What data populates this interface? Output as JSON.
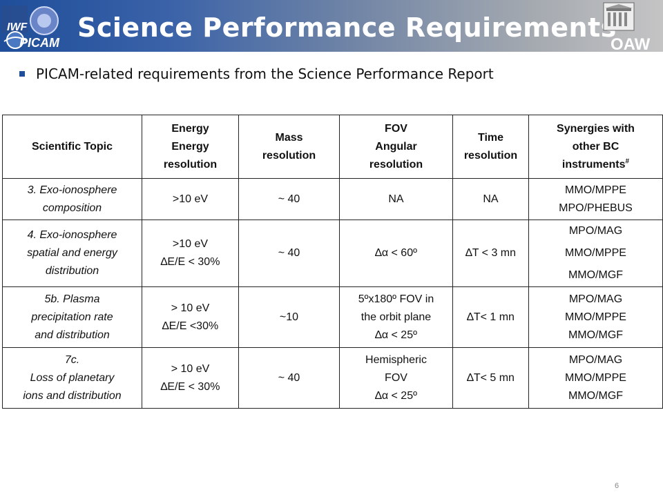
{
  "header": {
    "title": "Science Performance Requirements",
    "logo_left_text": [
      "IWF",
      "PICAM"
    ],
    "logo_right_text": "OAW"
  },
  "bullet": {
    "text": "PICAM-related requirements from the Science Performance Report"
  },
  "table": {
    "headers": [
      {
        "lines": [
          "Scientific Topic"
        ]
      },
      {
        "lines": [
          "Energy",
          "Energy",
          "resolution"
        ]
      },
      {
        "lines": [
          "Mass",
          "resolution"
        ]
      },
      {
        "lines": [
          "FOV",
          "Angular",
          "resolution"
        ]
      },
      {
        "lines": [
          "Time",
          "resolution"
        ]
      },
      {
        "lines": [
          "Synergies with",
          "other BC",
          "instruments"
        ],
        "superscript": "#"
      }
    ],
    "rows": [
      {
        "topic": [
          "3. Exo-ionosphere",
          "composition"
        ],
        "energy": [
          ">10 eV"
        ],
        "mass": [
          "~ 40"
        ],
        "fov": [
          "NA"
        ],
        "time": [
          "NA"
        ],
        "synergies": [
          "MMO/MPPE",
          "MPO/PHEBUS"
        ]
      },
      {
        "topic": [
          "4. Exo-ionosphere",
          "spatial and energy",
          "distribution"
        ],
        "energy": [
          ">10 eV",
          "∆E/E < 30%"
        ],
        "mass": [
          "~ 40"
        ],
        "fov": [
          "∆α < 60º"
        ],
        "time": [
          "∆T < 3 mn"
        ],
        "synergies": [
          "MPO/MAG",
          "MMO/MPPE",
          "MMO/MGF"
        ]
      },
      {
        "topic": [
          "5b. Plasma",
          "precipitation rate",
          "and distribution"
        ],
        "energy": [
          "> 10 eV",
          "∆E/E <30%"
        ],
        "mass": [
          "~10"
        ],
        "fov": [
          "5ºx180º FOV in",
          "the orbit plane",
          "∆α < 25º"
        ],
        "time": [
          "∆T< 1 mn"
        ],
        "synergies": [
          "MPO/MAG",
          "MMO/MPPE",
          "MMO/MGF"
        ]
      },
      {
        "topic": [
          "7c.",
          "Loss of planetary",
          "ions and distribution"
        ],
        "energy": [
          "> 10 eV",
          "∆E/E < 30%"
        ],
        "mass": [
          "~ 40"
        ],
        "fov": [
          "Hemispheric",
          "FOV",
          "∆α < 25º"
        ],
        "time": [
          "∆T< 5 mn"
        ],
        "synergies": [
          "MPO/MAG",
          "MMO/MPPE",
          "MMO/MGF"
        ]
      }
    ]
  },
  "page_number": "6",
  "colors": {
    "header_start": "#1f4e9a",
    "header_end": "#c4c4c4",
    "bullet": "#1f4e9a"
  }
}
